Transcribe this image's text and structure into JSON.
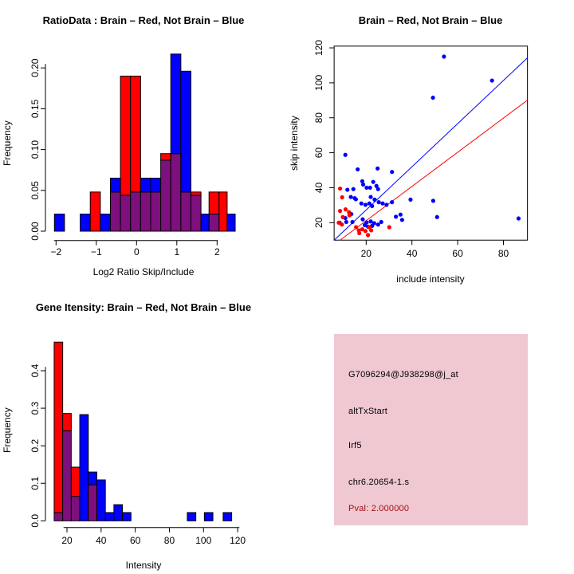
{
  "figure_background": "#FFFFFF",
  "colors": {
    "red": "#FF0000",
    "blue": "#0000FF",
    "overlap": "#7D107D",
    "axis": "#000000"
  },
  "chart_data": [
    {
      "type": "histogram",
      "title": "RatioData : Brain – Red, Not Brain – Blue",
      "xlabel": "Log2 Ratio Skip/Include",
      "ylabel": "Frequency",
      "legend": {
        "red": "Brain",
        "blue": "Not Brain"
      },
      "xticks": [
        -2,
        -1,
        0,
        1,
        2
      ],
      "xtick_labels": [
        "−2",
        "−1",
        "0",
        "1",
        "2"
      ],
      "yticks": [
        0,
        0.05,
        0.1,
        0.15,
        0.2
      ],
      "ytick_labels": [
        "0.00",
        "0.05",
        "0.10",
        "0.15",
        "0.20"
      ],
      "xlim": [
        -2.2,
        2.5
      ],
      "ylim": [
        0,
        0.22
      ],
      "bars": [
        {
          "x": -2.04,
          "w": 0.25,
          "blue": 0.021,
          "red": 0
        },
        {
          "x": -1.4,
          "w": 0.25,
          "blue": 0.021,
          "red": 0
        },
        {
          "x": -1.15,
          "w": 0.25,
          "blue": 0,
          "red": 0.048
        },
        {
          "x": -0.9,
          "w": 0.25,
          "blue": 0.021,
          "red": 0
        },
        {
          "x": -0.65,
          "w": 0.25,
          "blue": 0.065,
          "red": 0.048
        },
        {
          "x": -0.4,
          "w": 0.25,
          "blue": 0.044,
          "red": 0.19
        },
        {
          "x": -0.15,
          "w": 0.25,
          "blue": 0.048,
          "red": 0.19
        },
        {
          "x": 0.1,
          "w": 0.25,
          "blue": 0.065,
          "red": 0.048
        },
        {
          "x": 0.35,
          "w": 0.25,
          "blue": 0.065,
          "red": 0.048
        },
        {
          "x": 0.6,
          "w": 0.25,
          "blue": 0.087,
          "red": 0.095
        },
        {
          "x": 0.85,
          "w": 0.25,
          "blue": 0.217,
          "red": 0.095
        },
        {
          "x": 1.1,
          "w": 0.25,
          "blue": 0.196,
          "red": 0.048
        },
        {
          "x": 1.35,
          "w": 0.25,
          "blue": 0.044,
          "red": 0.048
        },
        {
          "x": 1.6,
          "w": 0.2,
          "blue": 0.021,
          "red": 0
        },
        {
          "x": 1.8,
          "w": 0.25,
          "blue": 0.021,
          "red": 0.048
        },
        {
          "x": 2.05,
          "w": 0.2,
          "blue": 0,
          "red": 0.048
        },
        {
          "x": 2.25,
          "w": 0.2,
          "blue": 0.021,
          "red": 0
        }
      ]
    },
    {
      "type": "scatter",
      "title": "Brain – Red, Not Brain – Blue",
      "xlabel": "include intensity",
      "ylabel": "skip intensity",
      "xticks": [
        20,
        40,
        60,
        80
      ],
      "xtick_labels": [
        "20",
        "40",
        "60",
        "80"
      ],
      "yticks": [
        20,
        40,
        60,
        80,
        100,
        120
      ],
      "ytick_labels": [
        "20",
        "40",
        "60",
        "80",
        "100",
        "120"
      ],
      "xlim": [
        6,
        90.5
      ],
      "ylim": [
        10,
        121
      ],
      "blue_line": {
        "x1": 6,
        "y1": 10,
        "x2": 90.5,
        "y2": 114.3
      },
      "red_line": {
        "x1": 8.6,
        "y1": 10,
        "x2": 90.5,
        "y2": 90.1
      },
      "blue_points": [
        [
          10.9,
          58.8
        ],
        [
          16.3,
          50.5
        ],
        [
          25,
          51
        ],
        [
          31.3,
          49
        ],
        [
          18.3,
          43.7
        ],
        [
          23.1,
          43.3
        ],
        [
          14.4,
          39.2
        ],
        [
          18.7,
          41.8
        ],
        [
          20.2,
          40
        ],
        [
          21.7,
          40
        ],
        [
          24.5,
          41
        ],
        [
          25.2,
          39.2
        ],
        [
          11.8,
          38.8
        ],
        [
          13.3,
          34.7
        ],
        [
          15,
          34
        ],
        [
          15.5,
          33.4
        ],
        [
          17.9,
          31
        ],
        [
          19.7,
          30.2
        ],
        [
          21.4,
          31
        ],
        [
          22.6,
          29.5
        ],
        [
          22,
          34.7
        ],
        [
          23.7,
          33.2
        ],
        [
          25.5,
          31.7
        ],
        [
          27.2,
          31
        ],
        [
          28.9,
          30.2
        ],
        [
          31.3,
          31.7
        ],
        [
          39.4,
          33.2
        ],
        [
          49.3,
          32.5
        ],
        [
          33,
          23.4
        ],
        [
          35,
          24.6
        ],
        [
          35.7,
          21.6
        ],
        [
          51,
          23.2
        ],
        [
          86.6,
          22.4
        ],
        [
          54,
          115
        ],
        [
          75,
          101.3
        ],
        [
          49.2,
          91.5
        ],
        [
          10.9,
          22.6
        ],
        [
          8.4,
          20
        ],
        [
          11.3,
          20.4
        ],
        [
          18.5,
          21.9
        ],
        [
          20.2,
          20.1
        ],
        [
          22,
          20.7
        ],
        [
          23.5,
          19.7
        ],
        [
          22.6,
          18.2
        ],
        [
          20.8,
          17.7
        ],
        [
          19.4,
          18.6
        ],
        [
          25.2,
          18.9
        ],
        [
          26.6,
          20.4
        ],
        [
          13.5,
          24.9
        ],
        [
          14,
          20.4
        ]
      ],
      "red_points": [
        [
          8.6,
          39.5
        ],
        [
          9.5,
          34.5
        ],
        [
          8.6,
          26.7
        ],
        [
          11,
          27.6
        ],
        [
          12.5,
          26
        ],
        [
          9.8,
          23.2
        ],
        [
          8,
          20
        ],
        [
          9.4,
          18.9
        ],
        [
          12.7,
          24.2
        ],
        [
          15.6,
          17.4
        ],
        [
          16.8,
          15.6
        ],
        [
          18.3,
          16.2
        ],
        [
          19.7,
          15.2
        ],
        [
          21.4,
          17.4
        ],
        [
          22.2,
          15.6
        ],
        [
          30.1,
          17.4
        ],
        [
          20.8,
          12.9
        ],
        [
          17,
          14
        ]
      ]
    },
    {
      "type": "histogram",
      "title": "Gene Itensity: Brain – Red, Not Brain – Blue",
      "xlabel": "Intensity",
      "ylabel": "Frequency",
      "legend": {
        "red": "Brain",
        "blue": "Not Brain"
      },
      "xticks": [
        20,
        40,
        60,
        80,
        100,
        120
      ],
      "xtick_labels": [
        "20",
        "40",
        "60",
        "80",
        "100",
        "120"
      ],
      "yticks": [
        0,
        0.1,
        0.2,
        0.3,
        0.4
      ],
      "ytick_labels": [
        "0.0",
        "0.1",
        "0.2",
        "0.3",
        "0.4"
      ],
      "xlim": [
        12,
        122
      ],
      "ylim": [
        0,
        0.49
      ],
      "bars": [
        {
          "x": 12.5,
          "w": 5,
          "blue": 0.022,
          "red": 0.476
        },
        {
          "x": 17.5,
          "w": 5,
          "blue": 0.24,
          "red": 0.286
        },
        {
          "x": 22.5,
          "w": 5,
          "blue": 0.065,
          "red": 0.143
        },
        {
          "x": 27.5,
          "w": 5,
          "blue": 0.283,
          "red": 0
        },
        {
          "x": 32.5,
          "w": 5,
          "blue": 0.13,
          "red": 0.096
        },
        {
          "x": 37.5,
          "w": 5,
          "blue": 0.109,
          "red": 0
        },
        {
          "x": 42.5,
          "w": 5,
          "blue": 0.022,
          "red": 0
        },
        {
          "x": 47.5,
          "w": 5,
          "blue": 0.043,
          "red": 0
        },
        {
          "x": 52.5,
          "w": 5,
          "blue": 0.022,
          "red": 0
        },
        {
          "x": 90.5,
          "w": 5,
          "blue": 0.022,
          "red": 0
        },
        {
          "x": 100.5,
          "w": 5,
          "blue": 0.022,
          "red": 0
        },
        {
          "x": 111.5,
          "w": 5,
          "blue": 0.022,
          "red": 0
        }
      ]
    },
    {
      "type": "info",
      "background": "#EFC8D1",
      "lines": [
        "G7096294@J938298@j_at",
        "altTxStart",
        "Irf5",
        "chr6.20654-1.s"
      ],
      "pval_label": "Pval: 2.000000",
      "pval_color": "#A01018"
    }
  ]
}
